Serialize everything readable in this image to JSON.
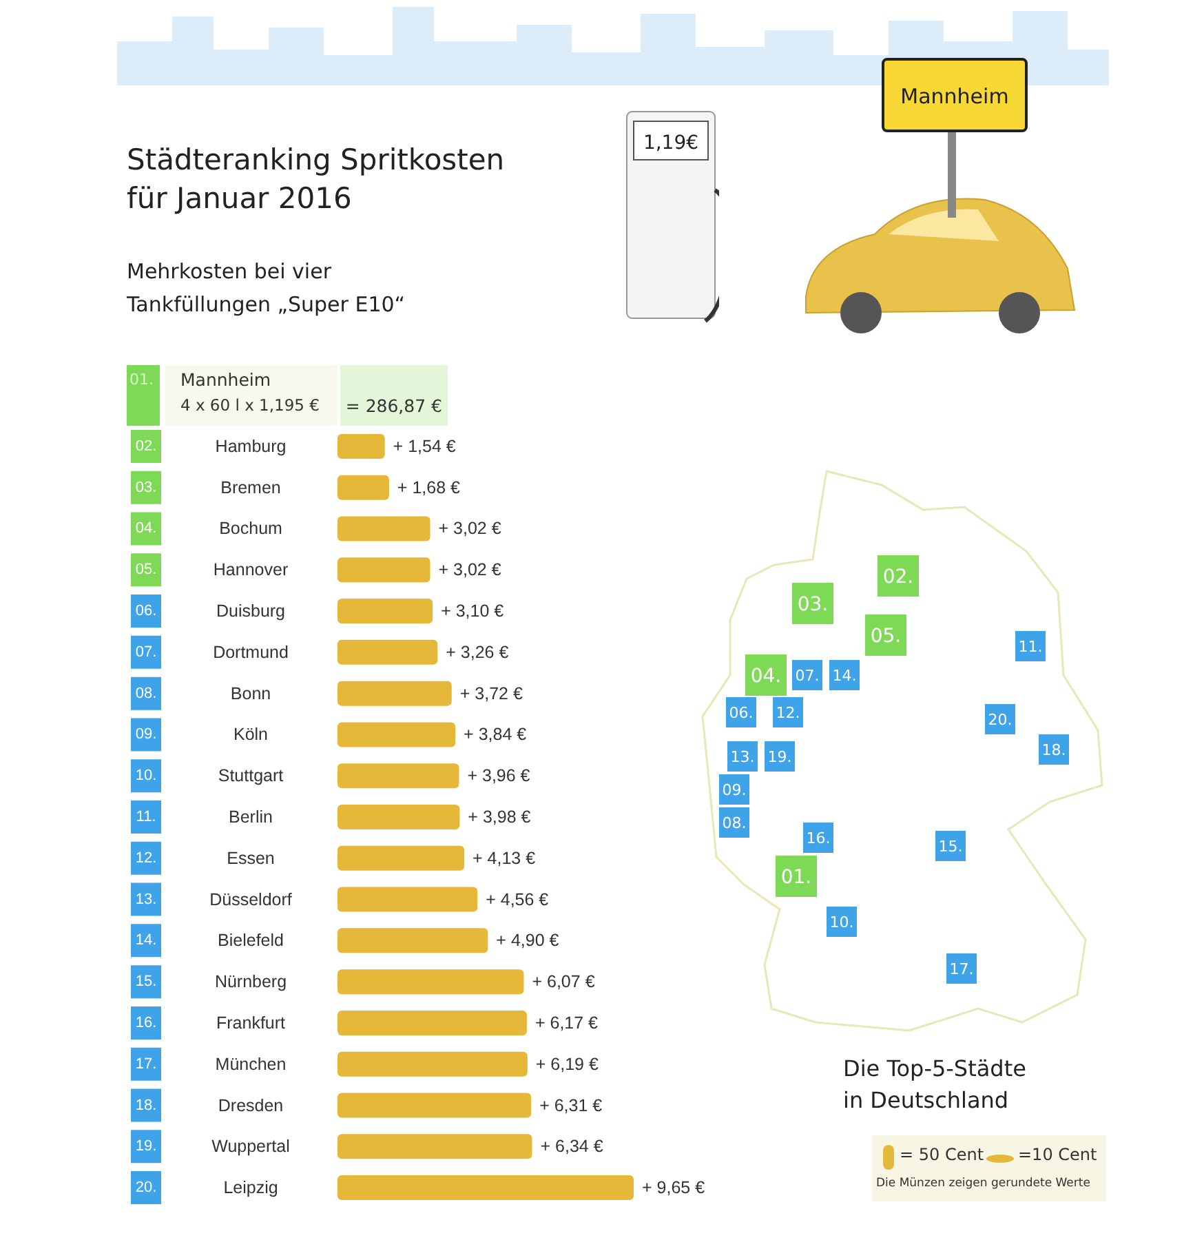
{
  "chart_data": {
    "type": "bar",
    "orientation": "horizontal",
    "title": "Städteranking Spritkosten für Januar 2016",
    "subtitle": "Mehrkosten bei vier Tankfüllungen „Super E10“",
    "color": "#e6b83a",
    "categories": [
      "02. Hamburg",
      "03. Bremen",
      "04. Bochum",
      "05. Hannover",
      "06. Duisburg",
      "07. Dortmund",
      "08. Bonn",
      "09. Köln",
      "10. Stuttgart",
      "11. Berlin",
      "12. Essen",
      "13. Düsseldorf",
      "14. Bielefeld",
      "15. Nürnberg",
      "16. Frankfurt",
      "17. München",
      "18. Dresden",
      "19. Wuppertal",
      "20. Leipzig"
    ],
    "values": [
      1.54,
      1.68,
      3.02,
      3.02,
      3.1,
      3.26,
      3.72,
      3.84,
      3.96,
      3.98,
      4.13,
      4.56,
      4.9,
      6.07,
      6.17,
      6.19,
      6.31,
      6.34,
      9.65
    ],
    "value_labels": [
      "+ 1,54 €",
      "+ 1,68 €",
      "+ 3,02 €",
      "+ 3,02 €",
      "+ 3,10 €",
      "+ 3,26 €",
      "+ 3,72 €",
      "+ 3,84 €",
      "+ 3,96 €",
      "+ 3,98 €",
      "+ 4,13 €",
      "+ 4,56 €",
      "+ 4,90 €",
      "+ 6,07 €",
      "+ 6,17 €",
      "+ 6,19 €",
      "+ 6,31 €",
      "+ 6,34 €",
      "+ 9,65 €"
    ],
    "annotations": [
      "01. Mannheim",
      "4 x 60 l x 1,195 €",
      "= 286,87 €",
      "1,19€",
      "Mannheim",
      "Die Top-5-Städte in Deutschland",
      "= 50 Cent",
      "=10 Cent",
      "Die Münzen zeigen gerundete Werte",
      "01.",
      "02.",
      "03.",
      "04.",
      "05.",
      "06.",
      "07.",
      "08.",
      "09.",
      "10.",
      "11.",
      "12.",
      "13.",
      "14.",
      "15.",
      "16.",
      "17.",
      "18.",
      "19.",
      "20."
    ]
  }
}
